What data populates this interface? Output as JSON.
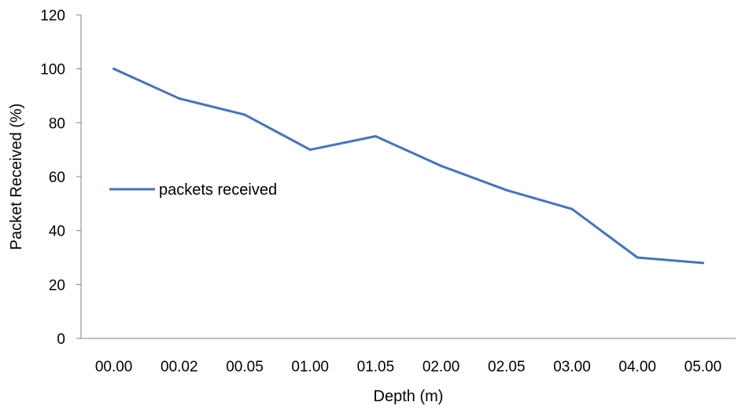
{
  "chart_data": {
    "type": "line",
    "title": "",
    "xlabel": "Depth (m)",
    "ylabel": "Packet Received (%)",
    "categories": [
      "00.00",
      "00.02",
      "00.05",
      "01.00",
      "01.05",
      "02.00",
      "02.05",
      "03.00",
      "04.00",
      "05.00"
    ],
    "series": [
      {
        "name": "packets received",
        "values": [
          100,
          89,
          83,
          70,
          75,
          64,
          55,
          48,
          30,
          28
        ],
        "color": "#4472C4"
      }
    ],
    "ylim": [
      0,
      120
    ],
    "yticks": [
      "0",
      "20",
      "40",
      "60",
      "80",
      "100",
      "120"
    ],
    "grid": false,
    "legend": "left"
  }
}
